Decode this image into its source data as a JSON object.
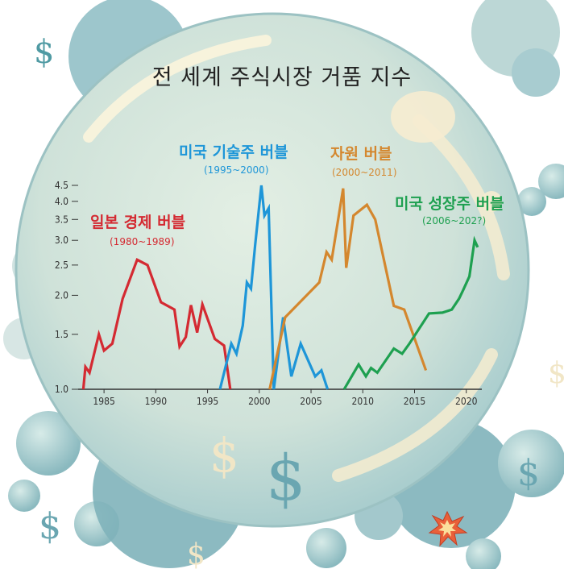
{
  "chart_data": {
    "type": "line",
    "title": "전 세계 주식시장 거품 지수",
    "xlim": [
      1982.5,
      2021.5
    ],
    "ylim": [
      1.0,
      4.5
    ],
    "yscale": "log",
    "x_ticks": [
      "1985",
      "1990",
      "1995",
      "2000",
      "2005",
      "2010",
      "2015",
      "2020"
    ],
    "y_ticks": [
      "1.0",
      "1.5",
      "2.0",
      "2.5",
      "3.0",
      "3.5",
      "4.0",
      "4.5"
    ],
    "grid": false,
    "series": [
      {
        "name": "일본 경제 버블",
        "range": "(1980~1989)",
        "color": "#d42a32",
        "x": [
          1983.0,
          1983.2,
          1983.6,
          1984.5,
          1985.0,
          1985.8,
          1986.8,
          1988.2,
          1989.2,
          1990.5,
          1991.8,
          1992.3,
          1992.9,
          1993.4,
          1994.0,
          1994.5,
          1995.7,
          1996.6,
          1997.2
        ],
        "y": [
          1.0,
          1.18,
          1.13,
          1.5,
          1.33,
          1.4,
          1.95,
          2.6,
          2.5,
          1.9,
          1.8,
          1.37,
          1.47,
          1.86,
          1.52,
          1.87,
          1.45,
          1.38,
          1.0
        ]
      },
      {
        "name": "미국 기술주 버블",
        "range": "(1995~2000)",
        "color": "#1e96d8",
        "x": [
          1996.2,
          1997.3,
          1997.8,
          1998.4,
          1998.8,
          1999.2,
          1999.6,
          2000.2,
          2000.5,
          2000.9,
          2001.4,
          2002.3,
          2003.1,
          2004.0,
          2005.4,
          2006.0,
          2006.6
        ],
        "y": [
          1.0,
          1.4,
          1.3,
          1.6,
          2.2,
          2.1,
          2.9,
          4.5,
          3.6,
          3.8,
          1.0,
          1.7,
          1.1,
          1.4,
          1.1,
          1.15,
          1.0
        ]
      },
      {
        "name": "자원 버블",
        "range": "(2000~2011)",
        "color": "#d4872e",
        "x": [
          2001.0,
          2002.5,
          2005.8,
          2006.5,
          2007.0,
          2008.1,
          2008.4,
          2009.1,
          2010.4,
          2011.2,
          2013.0,
          2014.0,
          2016.1
        ],
        "y": [
          1.0,
          1.7,
          2.2,
          2.75,
          2.6,
          4.4,
          2.45,
          3.6,
          3.9,
          3.5,
          1.85,
          1.8,
          1.15
        ]
      },
      {
        "name": "미국 성장주 버블",
        "range": "(2006~202?)",
        "color": "#1ea050",
        "x": [
          2008.2,
          2009.6,
          2010.3,
          2010.8,
          2011.4,
          2013.0,
          2013.8,
          2014.5,
          2016.4,
          2017.7,
          2018.6,
          2019.3,
          2019.7,
          2020.3,
          2020.8,
          2021.1
        ],
        "y": [
          1.0,
          1.2,
          1.1,
          1.17,
          1.13,
          1.35,
          1.3,
          1.4,
          1.75,
          1.76,
          1.8,
          1.95,
          2.08,
          2.3,
          3.0,
          2.85
        ]
      }
    ]
  }
}
